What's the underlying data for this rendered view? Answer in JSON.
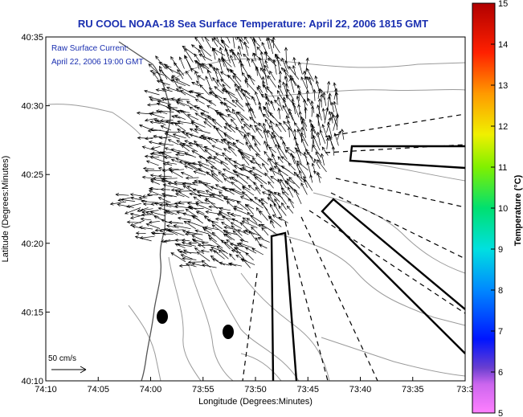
{
  "title": "RU COOL  NOAA-18  Sea Surface Temperature:  April 22, 2006 1815 GMT",
  "annotation": {
    "line1": "Raw Surface Current:",
    "line2": "April 22, 2006 19:00 GMT"
  },
  "scale_label": "50 cm/s",
  "chart_data": {
    "type": "map",
    "title": "RU COOL  NOAA-18  Sea Surface Temperature:  April 22, 2006 1815 GMT",
    "xlabel": "Longitude (Degrees:Minutes)",
    "ylabel": "Latitude (Degrees:Minutes)",
    "x_ticks": [
      "74:10",
      "74:05",
      "74:00",
      "73:55",
      "73:50",
      "73:45",
      "73:40",
      "73:35",
      "73:3"
    ],
    "y_ticks": [
      "40:10",
      "40:15",
      "40:20",
      "40:25",
      "40:30",
      "40:35"
    ],
    "colorbar": {
      "label": "Temperature (°C)",
      "min": 5,
      "max": 15,
      "ticks": [
        "5",
        "6",
        "7",
        "8",
        "9",
        "10",
        "11",
        "12",
        "13",
        "14",
        "15"
      ]
    },
    "markers": [
      {
        "type": "ellipse",
        "lon": "73:58.8",
        "lat": "40:14.3"
      },
      {
        "type": "ellipse",
        "lon": "73:52.5",
        "lat": "40:13.5"
      }
    ]
  },
  "colors": {
    "title": "#1a2fb0",
    "annotation": "#1a2fb0",
    "contour": "#9a9a9a",
    "arrow": "#000000"
  }
}
